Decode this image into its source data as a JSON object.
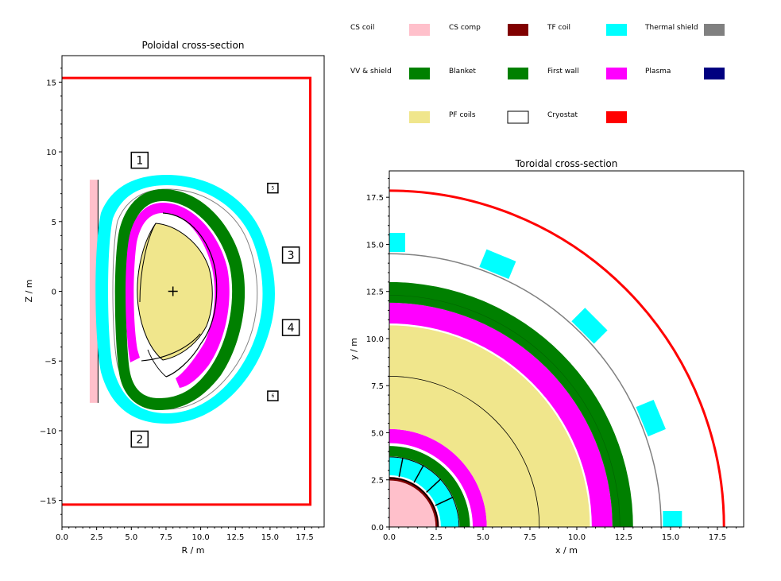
{
  "legend": {
    "items": [
      {
        "label": "CS coil",
        "color": "#ffc0cb",
        "edge": "none"
      },
      {
        "label": "CS comp",
        "color": "#800000",
        "edge": "none"
      },
      {
        "label": "TF coil",
        "color": "#00ffff",
        "edge": "none"
      },
      {
        "label": "Thermal shield",
        "color": "#808080",
        "edge": "none"
      },
      {
        "label": "VV & shield",
        "color": "#008000",
        "edge": "none"
      },
      {
        "label": "Blanket",
        "color": "#008000",
        "edge": "none"
      },
      {
        "label": "First wall",
        "color": "#ff00ff",
        "edge": "none"
      },
      {
        "label": "Plasma",
        "color": "#000080",
        "edge": "none"
      },
      {
        "label": "",
        "color": "#f0e68c",
        "edge": "none"
      },
      {
        "label": "PF coils",
        "color": "#ffffff",
        "edge": "#000000"
      },
      {
        "label": "Cryostat",
        "color": "#ff0000",
        "edge": "none"
      }
    ]
  },
  "chart_data": [
    {
      "type": "diagram",
      "title": "Poloidal cross-section",
      "xlabel": "R / m",
      "ylabel": "Z / m",
      "xlim": [
        0,
        18.9
      ],
      "ylim": [
        -16.9,
        16.9
      ],
      "xticks": [
        "0.0",
        "2.5",
        "5.0",
        "7.5",
        "10.0",
        "12.5",
        "15.0",
        "17.5"
      ],
      "xtick_values": [
        0,
        2.5,
        5,
        7.5,
        10,
        12.5,
        15,
        17.5
      ],
      "yticks": [
        "−15",
        "−10",
        "−5",
        "0",
        "5",
        "10",
        "15"
      ],
      "ytick_values": [
        -15,
        -10,
        -5,
        0,
        5,
        10,
        15
      ],
      "cryostat": {
        "r_outer": 17.9,
        "z_half": 15.3
      },
      "cs_coil": {
        "r_in": 2.0,
        "r_out": 2.6,
        "z_half": 8.0
      },
      "magnetic_axis": {
        "r": 8.0,
        "z": 0.0
      },
      "pf_coil_labels": [
        {
          "label": "1",
          "r": 5.6,
          "z": 9.4,
          "size": "large"
        },
        {
          "label": "2",
          "r": 5.6,
          "z": -10.6,
          "size": "large"
        },
        {
          "label": "3",
          "r": 16.5,
          "z": 2.6,
          "size": "large"
        },
        {
          "label": "4",
          "r": 16.5,
          "z": -2.6,
          "size": "large"
        },
        {
          "label": "5",
          "r": 15.2,
          "z": 7.4,
          "size": "small"
        },
        {
          "label": "6",
          "r": 15.2,
          "z": -7.5,
          "size": "small"
        }
      ]
    },
    {
      "type": "diagram",
      "title": "Toroidal cross-section",
      "xlabel": "x / m",
      "ylabel": "y / m",
      "xlim": [
        0,
        18.9
      ],
      "ylim": [
        0,
        18.9
      ],
      "xticks": [
        "0.0",
        "2.5",
        "5.0",
        "7.5",
        "10.0",
        "12.5",
        "15.0",
        "17.5"
      ],
      "xtick_values": [
        0,
        2.5,
        5,
        7.5,
        10,
        12.5,
        15,
        17.5
      ],
      "yticks": [
        "0.0",
        "2.5",
        "5.0",
        "7.5",
        "10.0",
        "12.5",
        "15.0",
        "17.5"
      ],
      "ytick_values": [
        0,
        2.5,
        5,
        7.5,
        10,
        12.5,
        15,
        17.5
      ],
      "rings": [
        {
          "name": "cs-coil",
          "r_in": 0,
          "r_out": 2.6,
          "color": "#ffc0cb"
        },
        {
          "name": "cs-comp",
          "r_in": 2.5,
          "r_out": 2.65,
          "color": "#800000"
        },
        {
          "name": "tf-inboard",
          "r_in": 2.75,
          "r_out": 3.7,
          "color": "#00ffff"
        },
        {
          "name": "vv-inboard",
          "r_in": 3.75,
          "r_out": 4.3,
          "color": "#008000"
        },
        {
          "name": "firstwall-inboard",
          "r_in": 4.45,
          "r_out": 5.2,
          "color": "#ff00ff"
        },
        {
          "name": "plasma",
          "r_in": 5.2,
          "r_out": 10.7,
          "color": "#f0e68c"
        },
        {
          "name": "firstwall-outboard",
          "r_in": 10.8,
          "r_out": 11.9,
          "color": "#ff00ff"
        },
        {
          "name": "blanket-vv-outboard",
          "r_in": 11.9,
          "r_out": 13.0,
          "color": "#008000"
        }
      ],
      "thermal_shield_radius": 14.5,
      "cryostat_radius": 17.85,
      "magnetic_axis_radius": 8.0,
      "tf_coils_outboard": [
        {
          "angle_deg": 90
        },
        {
          "angle_deg": 67.5
        },
        {
          "angle_deg": 45
        },
        {
          "angle_deg": 22.5
        },
        {
          "angle_deg": 0
        }
      ]
    }
  ]
}
